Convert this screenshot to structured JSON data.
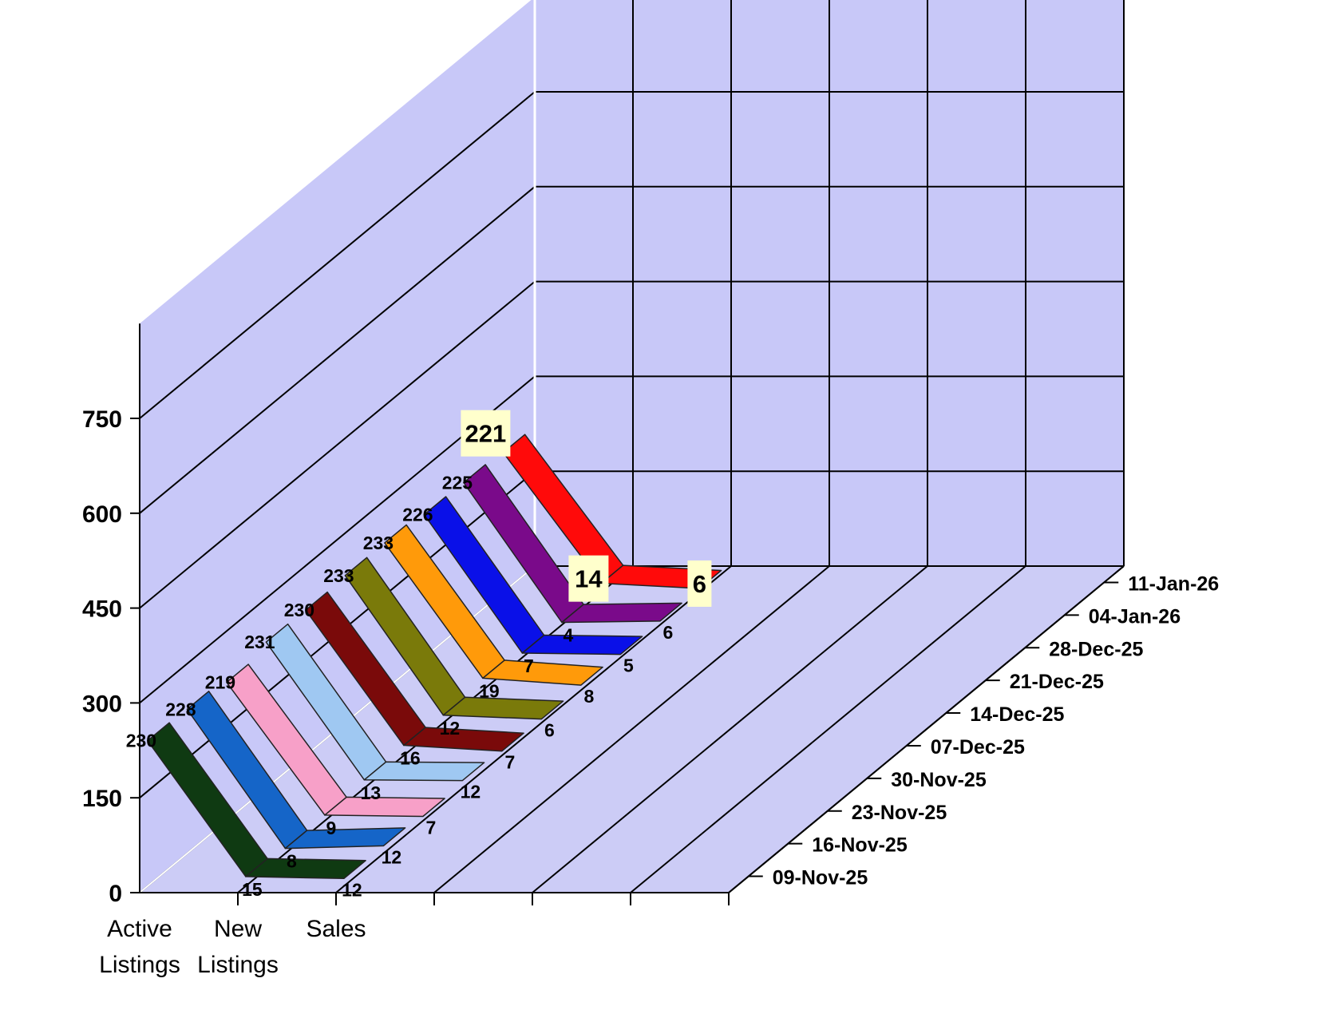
{
  "chart_data": {
    "type": "line",
    "title": "",
    "xlabel": "",
    "ylabel": "",
    "categories": [
      [
        "Active",
        "Listings"
      ],
      [
        "New",
        "Listings"
      ],
      [
        "Sales"
      ]
    ],
    "y_ticks": [
      "0",
      "150",
      "300",
      "450",
      "600",
      "750"
    ],
    "ylim": [
      0,
      750
    ],
    "grid": true,
    "series": [
      {
        "name": "09-Nov-25",
        "values": [
          230,
          15,
          12
        ],
        "color": "#0f3a12"
      },
      {
        "name": "16-Nov-25",
        "values": [
          228,
          8,
          12
        ],
        "color": "#1565c8"
      },
      {
        "name": "23-Nov-25",
        "values": [
          219,
          9,
          7
        ],
        "color": "#f7a0c8"
      },
      {
        "name": "30-Nov-25",
        "values": [
          231,
          13,
          12
        ],
        "color": "#9fc8f2"
      },
      {
        "name": "07-Dec-25",
        "values": [
          230,
          16,
          7
        ],
        "color": "#7a0a0a"
      },
      {
        "name": "14-Dec-25",
        "values": [
          233,
          12,
          6
        ],
        "color": "#7a7a0a"
      },
      {
        "name": "21-Dec-25",
        "values": [
          233,
          19,
          8
        ],
        "color": "#ff9a0a"
      },
      {
        "name": "28-Dec-25",
        "values": [
          226,
          7,
          5
        ],
        "color": "#0a10e8"
      },
      {
        "name": "04-Jan-26",
        "values": [
          225,
          4,
          6
        ],
        "color": "#7a0a8a"
      },
      {
        "name": "11-Jan-26",
        "values": [
          221,
          14,
          6
        ],
        "color": "#ff0a0a",
        "highlight": true
      }
    ],
    "colors": {
      "wall": "#c8c8f8",
      "wall_dark": "#ccccf6",
      "grid": "#000000",
      "grid_front": "#ffffff",
      "highlight_label_bg": "#ffffcc"
    }
  }
}
